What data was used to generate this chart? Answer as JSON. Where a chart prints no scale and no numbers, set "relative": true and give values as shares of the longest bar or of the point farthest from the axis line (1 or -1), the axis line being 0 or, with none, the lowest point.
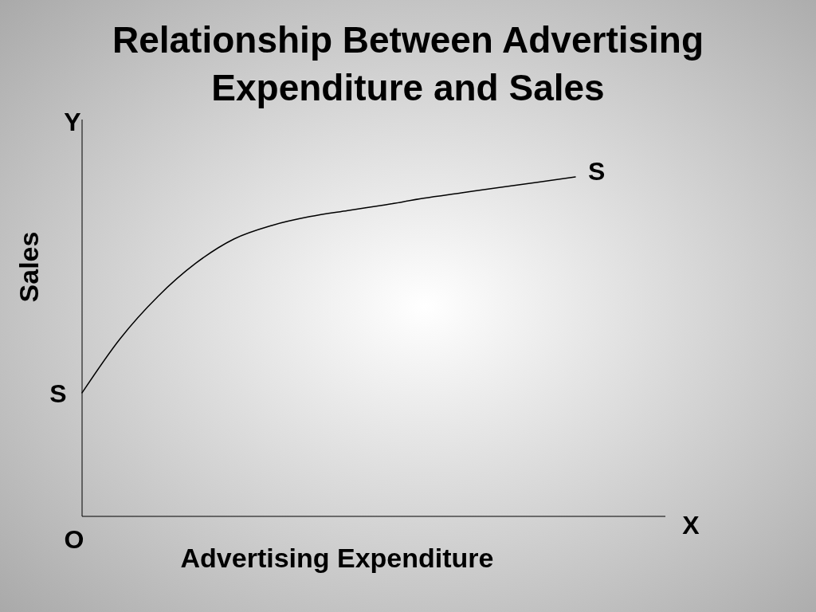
{
  "chart_data": {
    "type": "line",
    "title": "Relationship Between Advertising Expenditure and Sales",
    "xlabel": "Advertising Expenditure",
    "ylabel": "Sales",
    "relative": true,
    "categories": [
      null,
      null,
      null,
      null,
      null,
      null,
      null,
      null,
      null,
      null,
      null,
      null,
      null,
      null
    ],
    "series": [
      {
        "name": "S",
        "color": "#000000",
        "values": [
          0.364,
          0.523,
          0.648,
          0.746,
          0.817,
          0.857,
          0.883,
          0.901,
          0.918,
          0.937,
          0.953,
          0.969,
          0.984,
          1
        ]
      }
    ],
    "annotations": [
      "Y",
      "X",
      "O",
      "S"
    ],
    "grid": false,
    "marker": "none",
    "line_style": "solid"
  }
}
